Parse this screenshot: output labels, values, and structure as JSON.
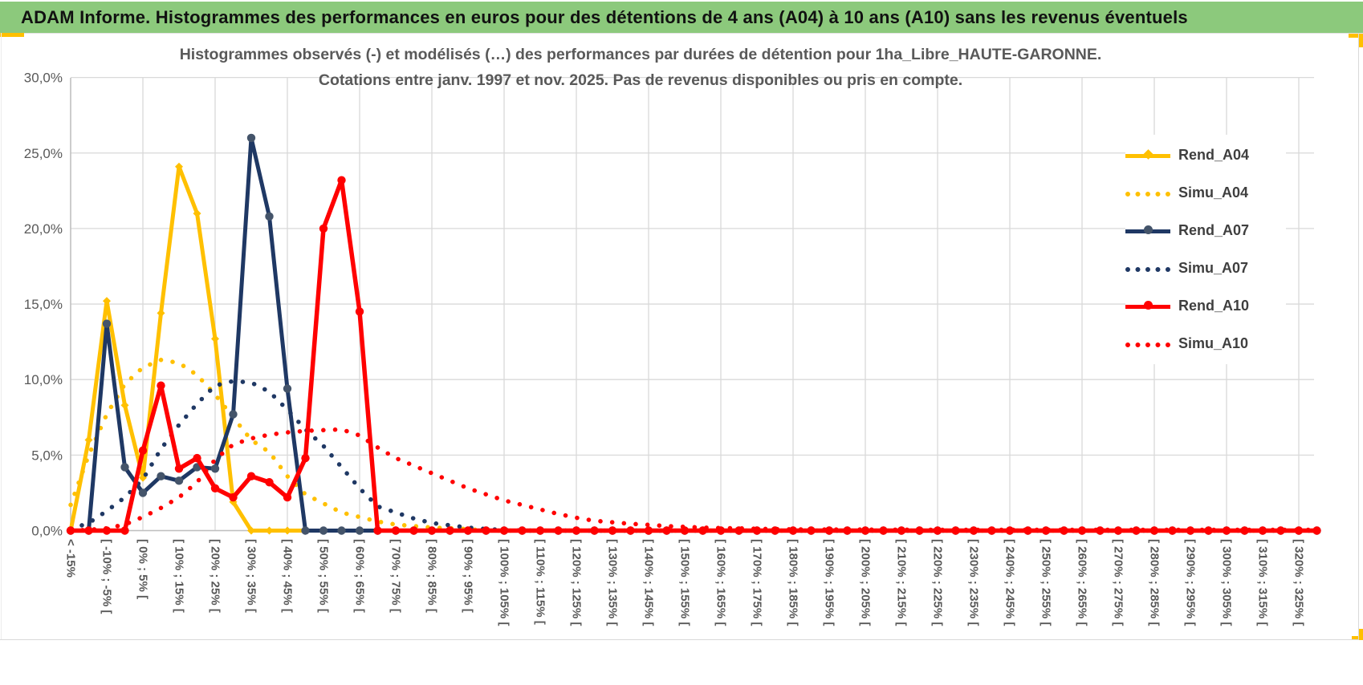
{
  "header": {
    "title": "ADAM Informe. Histogrammes des performances en euros pour des détentions de 4 ans (A04) à 10 ans (A10) sans les revenus éventuels",
    "background_color": "#8CC97C",
    "accent_color": "#FFC000"
  },
  "chart": {
    "title_line1": "Histogrammes observés (-) et modélisés (…) des performances par durées de détention pour 1ha_Libre_HAUTE-GARONNE.",
    "title_line2": "Cotations entre janv. 1997 et nov. 2025. Pas de revenus disponibles ou pris en compte.",
    "title_color": "#595959"
  },
  "chart_data": {
    "type": "line",
    "title": "Histogrammes observés (-) et modélisés (…) des performances par durées de détention pour 1ha_Libre_HAUTE-GARONNE. Cotations entre janv. 1997 et nov. 2025. Pas de revenus disponibles ou pris en compte.",
    "grid": true,
    "n_bins": 70,
    "bin_width_percent": 5,
    "x_label_every_n_bins": 2,
    "x_tick_labels": [
      "< -15%",
      "[ -10% ; -5% [",
      "[ 0% ; 5% [",
      "[ 10% ; 15% [",
      "[ 20% ; 25% [",
      "[ 30% ; 35% [",
      "[ 40% ; 45% [",
      "[ 50% ; 55% [",
      "[ 60% ; 65% [",
      "[ 70% ; 75% [",
      "[ 80% ; 85% [",
      "[ 90% ; 95% [",
      "[ 100% ; 105% [",
      "[ 110% ; 115% [",
      "[ 120% ; 125% [",
      "[ 130% ; 135% [",
      "[ 140% ; 145% [",
      "[ 150% ; 155% [",
      "[ 160% ; 165% [",
      "[ 170% ; 175% [",
      "[ 180% ; 185% [",
      "[ 190% ; 195% [",
      "[ 200% ; 205% [",
      "[ 210% ; 215% [",
      "[ 220% ; 225% [",
      "[ 230% ; 235% [",
      "[ 240% ; 245% [",
      "[ 250% ; 255% [",
      "[ 260% ; 265% [",
      "[ 270% ; 275% [",
      "[ 280% ; 285% [",
      "[ 290% ; 295% [",
      "[ 300% ; 305% [",
      "[ 310% ; 315% [",
      "[ 320% ; 325% ["
    ],
    "ylabel": "",
    "ylim": [
      0,
      30
    ],
    "y_step": 5,
    "y_tick_labels": [
      "30,0%",
      "25,0%",
      "20,0%",
      "15,0%",
      "10,0%",
      "5,0%",
      "0,0%"
    ],
    "y_unit": "%",
    "legend_position": "right-inside",
    "series": [
      {
        "name": "Rend_A04",
        "style": "solid",
        "marker": "diamond",
        "color": "#FFC000",
        "marker_color": "#FFC000",
        "values": [
          0,
          6,
          15.2,
          8.3,
          3.5,
          14.4,
          24.1,
          21,
          12.7,
          1.9,
          0,
          0,
          0,
          0,
          0,
          0,
          0,
          0,
          0,
          0,
          0,
          0,
          0,
          0,
          0,
          0,
          0,
          0,
          0,
          0,
          0,
          0,
          0,
          0,
          0,
          0,
          0,
          0,
          0,
          0,
          0,
          0,
          0,
          0,
          0,
          0,
          0,
          0,
          0,
          0,
          0,
          0,
          0,
          0,
          0,
          0,
          0,
          0,
          0,
          0,
          0,
          0,
          0,
          0,
          0,
          0,
          0,
          0,
          0,
          0
        ]
      },
      {
        "name": "Simu_A04",
        "style": "dotted",
        "marker": "none",
        "color": "#FFC000",
        "marker_color": "#FFC000",
        "values": [
          1.7,
          5,
          7.7,
          9.7,
          10.8,
          11.3,
          11.1,
          10.3,
          9,
          7.5,
          6,
          5.2,
          3.6,
          2.4,
          1.8,
          1.2,
          0.9,
          0.6,
          0.4,
          0.3,
          0.2,
          0.15,
          0.1,
          0,
          0,
          0,
          0,
          0,
          0,
          0,
          0,
          0,
          0,
          0,
          0,
          0,
          0,
          0,
          0,
          0,
          0,
          0,
          0,
          0,
          0,
          0,
          0,
          0,
          0,
          0,
          0,
          0,
          0,
          0,
          0,
          0,
          0,
          0,
          0,
          0,
          0,
          0,
          0,
          0,
          0,
          0,
          0,
          0,
          0,
          0
        ]
      },
      {
        "name": "Rend_A07",
        "style": "solid",
        "marker": "circle",
        "color": "#1F3864",
        "marker_color": "#44546A",
        "values": [
          0,
          0,
          13.7,
          4.2,
          2.5,
          3.6,
          3.3,
          4.2,
          4.1,
          7.7,
          26,
          20.8,
          9.4,
          0,
          0,
          0,
          0,
          0,
          0,
          0,
          0,
          0,
          0,
          0,
          0,
          0,
          0,
          0,
          0,
          0,
          0,
          0,
          0,
          0,
          0,
          0,
          0,
          0,
          0,
          0,
          0,
          0,
          0,
          0,
          0,
          0,
          0,
          0,
          0,
          0,
          0,
          0,
          0,
          0,
          0,
          0,
          0,
          0,
          0,
          0,
          0,
          0,
          0,
          0,
          0,
          0,
          0,
          0,
          0,
          0
        ]
      },
      {
        "name": "Simu_A07",
        "style": "dotted",
        "marker": "none",
        "color": "#1F3864",
        "marker_color": "#1F3864",
        "values": [
          0.1,
          0.5,
          1.3,
          2.2,
          3.4,
          5.4,
          7,
          8.4,
          9.6,
          9.9,
          9.8,
          9.2,
          8,
          6.7,
          5.6,
          4.2,
          2.8,
          1.6,
          1.2,
          0.8,
          0.5,
          0.35,
          0.2,
          0.1,
          0.05,
          0,
          0,
          0,
          0,
          0,
          0,
          0,
          0,
          0,
          0,
          0,
          0,
          0,
          0,
          0,
          0,
          0,
          0,
          0,
          0,
          0,
          0,
          0,
          0,
          0,
          0,
          0,
          0,
          0,
          0,
          0,
          0,
          0,
          0,
          0,
          0,
          0,
          0,
          0,
          0,
          0,
          0,
          0,
          0,
          0
        ]
      },
      {
        "name": "Rend_A10",
        "style": "solid",
        "marker": "circle",
        "color": "#FF0000",
        "marker_color": "#FF0000",
        "values": [
          0,
          0,
          0,
          0,
          5.3,
          9.6,
          4.1,
          4.8,
          2.8,
          2.2,
          3.6,
          3.2,
          2.2,
          4.8,
          20,
          23.2,
          14.5,
          0,
          0,
          0,
          0,
          0,
          0,
          0,
          0,
          0,
          0,
          0,
          0,
          0,
          0,
          0,
          0,
          0,
          0,
          0,
          0,
          0,
          0,
          0,
          0,
          0,
          0,
          0,
          0,
          0,
          0,
          0,
          0,
          0,
          0,
          0,
          0,
          0,
          0,
          0,
          0,
          0,
          0,
          0,
          0,
          0,
          0,
          0,
          0,
          0,
          0,
          0,
          0,
          0
        ]
      },
      {
        "name": "Simu_A10",
        "style": "dotted",
        "marker": "none",
        "color": "#FF0000",
        "marker_color": "#FF0000",
        "values": [
          0,
          0.05,
          0.15,
          0.4,
          0.9,
          1.5,
          2.2,
          3.2,
          4.7,
          5.7,
          6.1,
          6.35,
          6.5,
          6.6,
          6.65,
          6.7,
          6.3,
          5.5,
          4.8,
          4.3,
          3.8,
          3.3,
          2.8,
          2.4,
          2,
          1.7,
          1.4,
          1.1,
          0.85,
          0.65,
          0.55,
          0.45,
          0.38,
          0.3,
          0.25,
          0.2,
          0.17,
          0.15,
          0.12,
          0.1,
          0.08,
          0.08,
          0.07,
          0.07,
          0.07,
          0.06,
          0.06,
          0.06,
          0.05,
          0.05,
          0.05,
          0.05,
          0.05,
          0.05,
          0.05,
          0.05,
          0.05,
          0.05,
          0.05,
          0.05,
          0.05,
          0.05,
          0.05,
          0.05,
          0.05,
          0.05,
          0.05,
          0.05,
          0.05,
          0.05
        ]
      }
    ],
    "axis_colors": {
      "grid": "#D9D9D9",
      "axis_line": "#BFBFBF",
      "tick_text": "#595959"
    }
  }
}
